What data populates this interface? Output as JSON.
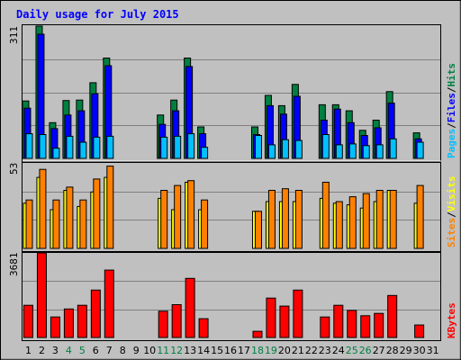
{
  "title": "Daily usage for July 2015",
  "colors": {
    "background": "#c0c0c0",
    "title_text": "#0000ff",
    "hits_dark": "#008040",
    "files": "#0000ff",
    "pages": "#00c0ff",
    "visits": "#ffff00",
    "sites": "#ff8000",
    "kbytes": "#ff0000",
    "weekend_label": "#008040",
    "gridline": "#808080"
  },
  "chart_data": [
    {
      "type": "bar",
      "panel": "hits-files-pages",
      "max_label": "311",
      "ylim": [
        0,
        311
      ],
      "grid": true,
      "legend": [
        {
          "name": "Pages",
          "color": "#00c0ff"
        },
        {
          "name": "Files",
          "color": "#0000ff"
        },
        {
          "name": "Hits",
          "color": "#008040"
        }
      ],
      "categories": [
        "1",
        "2",
        "3",
        "4",
        "5",
        "6",
        "7",
        "8",
        "9",
        "10",
        "11",
        "12",
        "13",
        "14",
        "15",
        "16",
        "17",
        "18",
        "19",
        "20",
        "21",
        "22",
        "23",
        "24",
        "25",
        "26",
        "27",
        "28",
        "29",
        "30",
        "31"
      ],
      "series": [
        {
          "name": "Hits",
          "values": [
            135,
            311,
            84,
            136,
            137,
            178,
            236,
            0,
            0,
            0,
            102,
            137,
            236,
            74,
            0,
            0,
            0,
            74,
            148,
            124,
            174,
            0,
            126,
            126,
            112,
            66,
            90,
            157,
            0,
            60,
            0
          ]
        },
        {
          "name": "Files",
          "values": [
            118,
            292,
            70,
            102,
            112,
            152,
            218,
            0,
            0,
            0,
            80,
            112,
            216,
            58,
            0,
            0,
            0,
            56,
            124,
            104,
            146,
            0,
            90,
            116,
            84,
            54,
            72,
            130,
            0,
            46,
            0
          ]
        },
        {
          "name": "Pages",
          "values": [
            58,
            56,
            24,
            52,
            38,
            50,
            52,
            0,
            0,
            0,
            50,
            52,
            58,
            26,
            0,
            0,
            0,
            54,
            32,
            44,
            42,
            0,
            56,
            32,
            34,
            30,
            32,
            46,
            0,
            38,
            0
          ]
        }
      ]
    },
    {
      "type": "bar",
      "panel": "visits-sites",
      "max_label": "53",
      "ylim": [
        0,
        53
      ],
      "grid": true,
      "legend": [
        {
          "name": "Sites",
          "color": "#ff8000"
        },
        {
          "name": "Visits",
          "color": "#ffff00"
        }
      ],
      "categories": [
        "1",
        "2",
        "3",
        "4",
        "5",
        "6",
        "7",
        "8",
        "9",
        "10",
        "11",
        "12",
        "13",
        "14",
        "15",
        "16",
        "17",
        "18",
        "19",
        "20",
        "21",
        "22",
        "23",
        "24",
        "25",
        "26",
        "27",
        "28",
        "29",
        "30",
        "31"
      ],
      "series": [
        {
          "name": "Visits",
          "values": [
            28,
            44,
            24,
            36,
            26,
            35,
            44,
            0,
            0,
            0,
            31,
            24,
            41,
            24,
            0,
            0,
            0,
            23,
            29,
            29,
            29,
            0,
            31,
            28,
            27,
            25,
            29,
            36,
            0,
            28,
            0
          ]
        },
        {
          "name": "Sites",
          "values": [
            30,
            49,
            30,
            38,
            30,
            43,
            51,
            0,
            0,
            0,
            36,
            39,
            42,
            30,
            0,
            0,
            0,
            23,
            36,
            37,
            36,
            0,
            41,
            29,
            32,
            34,
            36,
            36,
            0,
            39,
            0
          ]
        }
      ]
    },
    {
      "type": "bar",
      "panel": "kbytes",
      "max_label": "3681",
      "ylim": [
        0,
        3681
      ],
      "grid": true,
      "legend": [
        {
          "name": "KBytes",
          "color": "#ff0000"
        }
      ],
      "categories": [
        "1",
        "2",
        "3",
        "4",
        "5",
        "6",
        "7",
        "8",
        "9",
        "10",
        "11",
        "12",
        "13",
        "14",
        "15",
        "16",
        "17",
        "18",
        "19",
        "20",
        "21",
        "22",
        "23",
        "24",
        "25",
        "26",
        "27",
        "28",
        "29",
        "30",
        "31"
      ],
      "series": [
        {
          "name": "KBytes",
          "values": [
            1401,
            3681,
            893,
            1240,
            1401,
            2062,
            2935,
            0,
            0,
            0,
            1144,
            1431,
            2574,
            818,
            0,
            0,
            0,
            269,
            1714,
            1367,
            2062,
            0,
            893,
            1401,
            1178,
            948,
            1049,
            1827,
            0,
            543,
            0
          ]
        }
      ]
    }
  ],
  "x_axis": {
    "labels": [
      "1",
      "2",
      "3",
      "4",
      "5",
      "6",
      "7",
      "8",
      "9",
      "10",
      "11",
      "12",
      "13",
      "14",
      "15",
      "16",
      "17",
      "18",
      "19",
      "20",
      "21",
      "22",
      "23",
      "24",
      "25",
      "26",
      "27",
      "28",
      "29",
      "30",
      "31"
    ],
    "weekend_days": [
      "4",
      "5",
      "11",
      "12",
      "18",
      "19",
      "25",
      "26"
    ]
  }
}
